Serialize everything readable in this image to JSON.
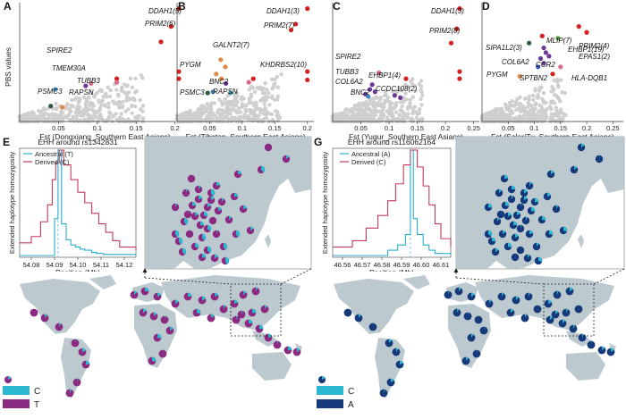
{
  "colors": {
    "grey_points": "#cfcfcf",
    "red": "#d42020",
    "cyan": "#2bb8d0",
    "purple": "#8a2a80",
    "navy": "#15397a",
    "land": "#bccacf",
    "ocean": "#ffffff",
    "ancestral_line": "#2aaed0",
    "derived_line": "#c23a5a"
  },
  "y_axis_label": "PBS values",
  "chart_data": [
    {
      "type": "scatter",
      "panel": "A",
      "xlabel": "Fst (Dongxiang_Southern East Asians)",
      "xlim": [
        0,
        0.22
      ],
      "xticks": [
        0.05,
        0.1,
        0.15,
        0.2
      ],
      "labels": [
        "DDAH1(5)",
        "PRIM2(6)",
        "SPIRE2",
        "TMEM30A",
        "TUBB3",
        "PSMC3",
        "RAPSN"
      ],
      "highlight_points": [
        {
          "x": 0.205,
          "y": 0.95,
          "c": "red"
        },
        {
          "x": 0.195,
          "y": 0.8,
          "c": "red"
        },
        {
          "x": 0.182,
          "y": 0.67,
          "c": "red"
        },
        {
          "x": 0.205,
          "y": 0.42,
          "c": "red"
        },
        {
          "x": 0.205,
          "y": 0.36,
          "c": "red"
        },
        {
          "x": 0.125,
          "y": 0.36,
          "c": "red"
        },
        {
          "x": 0.092,
          "y": 0.32,
          "c": "pink"
        },
        {
          "x": 0.125,
          "y": 0.33,
          "c": "pink"
        },
        {
          "x": 0.046,
          "y": 0.27,
          "c": "steelblue"
        },
        {
          "x": 0.085,
          "y": 0.3,
          "c": "purple"
        },
        {
          "x": 0.04,
          "y": 0.13,
          "c": "darkgreen"
        },
        {
          "x": 0.055,
          "y": 0.12,
          "c": "orange"
        }
      ]
    },
    {
      "type": "scatter",
      "panel": "B",
      "xlabel": "Fst (Tibetan_Southern East Asians)",
      "xlim": [
        0,
        0.21
      ],
      "xticks": [
        0.05,
        0.1,
        0.15,
        0.2
      ],
      "labels": [
        "DDAH1(3)",
        "PRIM2(7)",
        "GALNT2(7)",
        "KHDRBS2(10)",
        "PYGM",
        "BNC2",
        "PSMC3",
        "RAPSN"
      ],
      "highlight_points": [
        {
          "x": 0.2,
          "y": 0.95,
          "c": "red"
        },
        {
          "x": 0.182,
          "y": 0.82,
          "c": "red"
        },
        {
          "x": 0.175,
          "y": 0.77,
          "c": "red"
        },
        {
          "x": 0.2,
          "y": 0.42,
          "c": "red"
        },
        {
          "x": 0.2,
          "y": 0.35,
          "c": "red"
        },
        {
          "x": 0.067,
          "y": 0.52,
          "c": "orange"
        },
        {
          "x": 0.074,
          "y": 0.46,
          "c": "orange"
        },
        {
          "x": 0.06,
          "y": 0.4,
          "c": "orange"
        },
        {
          "x": 0.068,
          "y": 0.36,
          "c": "orange"
        },
        {
          "x": 0.075,
          "y": 0.32,
          "c": "purple"
        },
        {
          "x": 0.055,
          "y": 0.25,
          "c": "steelblue"
        },
        {
          "x": 0.047,
          "y": 0.24,
          "c": "darkgreen"
        },
        {
          "x": 0.082,
          "y": 0.24,
          "c": "teal"
        },
        {
          "x": 0.11,
          "y": 0.33,
          "c": "pink"
        },
        {
          "x": 0.117,
          "y": 0.36,
          "c": "red"
        }
      ]
    },
    {
      "type": "scatter",
      "panel": "C",
      "xlabel": "Fst (Yugur_Southern East Asians)",
      "xlim": [
        0,
        0.26
      ],
      "xticks": [
        0.05,
        0.1,
        0.15,
        0.2,
        0.25
      ],
      "labels": [
        "DDAH1(3)",
        "PRIM2(8)",
        "SPIRE2",
        "TUBB3",
        "EHBP1(4)",
        "COL6A2",
        "CCDC108(2)",
        "BNC2"
      ],
      "highlight_points": [
        {
          "x": 0.225,
          "y": 0.95,
          "c": "red"
        },
        {
          "x": 0.22,
          "y": 0.78,
          "c": "red"
        },
        {
          "x": 0.21,
          "y": 0.66,
          "c": "red"
        },
        {
          "x": 0.225,
          "y": 0.42,
          "c": "red"
        },
        {
          "x": 0.225,
          "y": 0.36,
          "c": "red"
        },
        {
          "x": 0.13,
          "y": 0.36,
          "c": "red"
        },
        {
          "x": 0.082,
          "y": 0.41,
          "c": "pink"
        },
        {
          "x": 0.07,
          "y": 0.31,
          "c": "purple"
        },
        {
          "x": 0.066,
          "y": 0.27,
          "c": "purple"
        },
        {
          "x": 0.075,
          "y": 0.25,
          "c": "purple"
        },
        {
          "x": 0.058,
          "y": 0.23,
          "c": "purple"
        },
        {
          "x": 0.063,
          "y": 0.21,
          "c": "steelblue"
        },
        {
          "x": 0.11,
          "y": 0.22,
          "c": "purple"
        },
        {
          "x": 0.12,
          "y": 0.2,
          "c": "purple"
        }
      ]
    },
    {
      "type": "scatter",
      "panel": "D",
      "xlabel": "Fst (Salar/Tu_Southern East Asians)",
      "xlim": [
        0,
        0.27
      ],
      "xticks": [
        0.05,
        0.1,
        0.15,
        0.2,
        0.25
      ],
      "labels": [
        "PRIM2(4)",
        "EPAS1(2)",
        "MLIP(7)",
        "SIPA1L2(3)",
        "EHBP1(19)",
        "COL6A2",
        "CCR2",
        "PYGM",
        "SPTBN2",
        "HLA-DQB1"
      ],
      "highlight_points": [
        {
          "x": 0.185,
          "y": 0.8,
          "c": "red"
        },
        {
          "x": 0.2,
          "y": 0.75,
          "c": "red"
        },
        {
          "x": 0.115,
          "y": 0.72,
          "c": "red"
        },
        {
          "x": 0.145,
          "y": 0.7,
          "c": "green"
        },
        {
          "x": 0.118,
          "y": 0.62,
          "c": "purple"
        },
        {
          "x": 0.122,
          "y": 0.58,
          "c": "purple"
        },
        {
          "x": 0.128,
          "y": 0.55,
          "c": "purple"
        },
        {
          "x": 0.112,
          "y": 0.53,
          "c": "purple"
        },
        {
          "x": 0.118,
          "y": 0.49,
          "c": "purple"
        },
        {
          "x": 0.107,
          "y": 0.46,
          "c": "blue"
        },
        {
          "x": 0.15,
          "y": 0.46,
          "c": "pink"
        },
        {
          "x": 0.09,
          "y": 0.66,
          "c": "darkgreen"
        },
        {
          "x": 0.072,
          "y": 0.38,
          "c": "orange"
        },
        {
          "x": 0.135,
          "y": 0.4,
          "c": "red"
        }
      ]
    },
    {
      "type": "line",
      "panel": "E",
      "title": "EHH around rs1342831",
      "xlabel": "Position (Mb)",
      "ylabel": "Extended haplotype homozygosity",
      "xlim": [
        54.075,
        54.125
      ],
      "xticks": [
        54.08,
        54.09,
        54.1,
        54.11,
        54.12
      ],
      "ylim": [
        0,
        1
      ],
      "series": [
        {
          "name": "Ancestral (T)",
          "x": [
            54.075,
            54.082,
            54.087,
            54.09,
            54.0915,
            54.093,
            54.095,
            54.097,
            54.099,
            54.101,
            54.103,
            54.106,
            54.108,
            54.111,
            54.125
          ],
          "y": [
            0,
            0,
            0,
            0.35,
            1,
            0.3,
            0.15,
            0.1,
            0.08,
            0.06,
            0.05,
            0.03,
            0.02,
            0.01,
            0
          ]
        },
        {
          "name": "Derived (C)",
          "x": [
            54.075,
            54.08,
            54.084,
            54.087,
            54.089,
            54.0905,
            54.092,
            54.094,
            54.097,
            54.1,
            54.103,
            54.106,
            54.109,
            54.112,
            54.115,
            54.118,
            54.125
          ],
          "y": [
            0.12,
            0.18,
            0.32,
            0.48,
            0.72,
            0.88,
            1,
            0.86,
            0.72,
            0.6,
            0.5,
            0.4,
            0.3,
            0.22,
            0.14,
            0.08,
            0.05
          ]
        }
      ]
    },
    {
      "type": "line",
      "panel": "G",
      "title": "EHH around rs116062164",
      "xlabel": "Position (Mb)",
      "ylabel": "Extended haplotype homozygosity",
      "xlim": [
        46.555,
        46.615
      ],
      "xticks": [
        46.56,
        46.57,
        46.58,
        46.59,
        46.6,
        46.61
      ],
      "ylim": [
        0,
        1
      ],
      "series": [
        {
          "name": "Ancestral (A)",
          "x": [
            46.555,
            46.575,
            46.583,
            46.588,
            46.592,
            46.5945,
            46.596,
            46.598,
            46.601,
            46.604,
            46.607,
            46.615
          ],
          "y": [
            0,
            0,
            0.05,
            0.1,
            0.2,
            1,
            0.35,
            0.2,
            0.1,
            0.05,
            0.02,
            0
          ]
        },
        {
          "name": "Derived (C)",
          "x": [
            46.555,
            46.565,
            46.572,
            46.578,
            46.583,
            46.587,
            46.591,
            46.5945,
            46.598,
            46.601,
            46.604,
            46.607,
            46.61,
            46.615
          ],
          "y": [
            0.08,
            0.14,
            0.26,
            0.38,
            0.52,
            0.68,
            0.86,
            1,
            0.84,
            0.66,
            0.48,
            0.3,
            0.16,
            0.08
          ]
        }
      ]
    }
  ],
  "maps": {
    "F_key": [
      "C",
      "T"
    ],
    "H_key": [
      "C",
      "A"
    ]
  }
}
